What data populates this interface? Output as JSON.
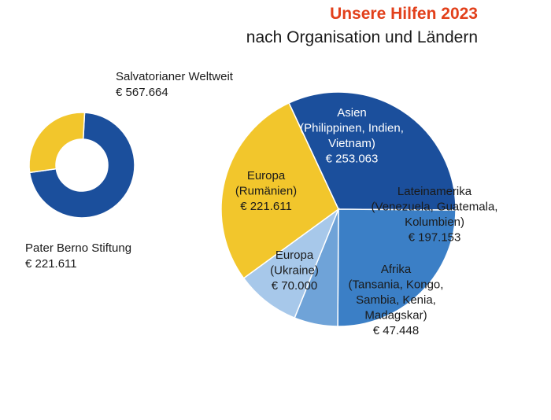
{
  "header": {
    "title": "Unsere Hilfen 2023",
    "subtitle": "nach Organisation und Ländern"
  },
  "chart_data": [
    {
      "type": "pie",
      "variant": "donut",
      "slices": [
        {
          "name": "Salvatorianer Weltweit",
          "value": 567664,
          "value_label": "€ 567.664",
          "color": "#1b4f9c"
        },
        {
          "name": "Pater Berno Stiftung",
          "value": 221611,
          "value_label": "€ 221.611",
          "color": "#f2c62c"
        }
      ]
    },
    {
      "type": "pie",
      "slices": [
        {
          "lines": [
            "Asien",
            "(Philippinen, Indien,",
            "Vietnam)"
          ],
          "value": 253063,
          "value_label": "€ 253.063",
          "color": "#1b4f9c",
          "text": "light"
        },
        {
          "lines": [
            "Lateinamerika",
            "(Venezuela, Guatemala,",
            "Kolumbien)"
          ],
          "value": 197153,
          "value_label": "€ 197.153",
          "color": "#3b7fc6",
          "text": "dark"
        },
        {
          "lines": [
            "Afrika",
            "(Tansania, Kongo,",
            "Sambia, Kenia,",
            "Madagskar)"
          ],
          "value": 47448,
          "value_label": "€ 47.448",
          "color": "#6fa3d8",
          "text": "dark"
        },
        {
          "lines": [
            "Europa",
            "(Ukraine)"
          ],
          "value": 70000,
          "value_label": "€ 70.000",
          "color": "#a7c8ea",
          "text": "dark"
        },
        {
          "lines": [
            "Europa",
            "(Rumänien)"
          ],
          "value": 221611,
          "value_label": "€ 221.611",
          "color": "#f2c62c",
          "text": "dark"
        }
      ]
    }
  ]
}
